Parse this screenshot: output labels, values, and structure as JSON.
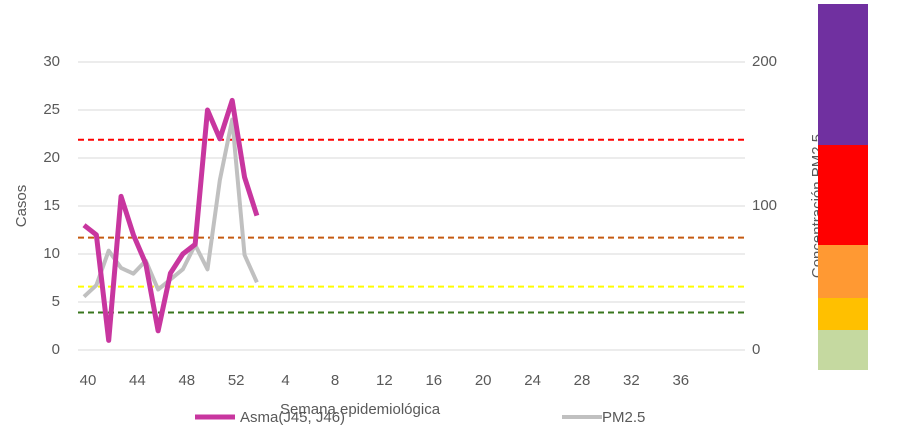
{
  "chart_data": {
    "type": "line",
    "x_label": "Semana epidemiológica",
    "y_label": "Casos",
    "y2_label": "Concentración PM2.5",
    "categories": [
      "40",
      null,
      null,
      null,
      "44",
      null,
      null,
      null,
      "48",
      null,
      null,
      null,
      "52",
      null,
      null,
      null,
      "4",
      null,
      null,
      null,
      "8",
      null,
      null,
      null,
      "12",
      null,
      null,
      null,
      "16",
      null,
      null,
      null,
      "20",
      null,
      null,
      null,
      "24",
      null,
      null,
      null,
      "28",
      null,
      null,
      null,
      "32",
      null,
      null,
      null,
      "36",
      null,
      null,
      null
    ],
    "ylim": [
      0,
      30
    ],
    "yticks": [
      0,
      5,
      10,
      15,
      20,
      25,
      30
    ],
    "y2lim": [
      0,
      200
    ],
    "y2ticks": [
      0,
      100,
      200
    ],
    "grid": true,
    "series": [
      {
        "name": "Asma(J45, J46)",
        "color": "#c8369f",
        "values": [
          13,
          12,
          1,
          16,
          12,
          9,
          2,
          8,
          10,
          11,
          25,
          22,
          26,
          18,
          14,
          null,
          null,
          null,
          null,
          null,
          null,
          null,
          null,
          null,
          null,
          null,
          null,
          null,
          null,
          null,
          null,
          null,
          null,
          null,
          null,
          null,
          null,
          null,
          null,
          null,
          null,
          null,
          null,
          null,
          null,
          null,
          null,
          null,
          null,
          null,
          null,
          null
        ]
      },
      {
        "name": "PM2.5",
        "color": "#c0c0c0",
        "axis": "y2",
        "values": [
          37,
          45,
          69,
          57,
          53,
          62,
          42,
          49,
          56,
          73,
          56,
          118,
          160,
          66,
          47,
          null,
          null,
          null,
          null,
          null,
          null,
          null,
          null,
          null,
          null,
          null,
          null,
          null,
          null,
          null,
          null,
          null,
          null,
          null,
          null,
          null,
          null,
          null,
          null,
          null,
          null,
          null,
          null,
          null,
          null,
          null,
          null,
          null,
          null,
          null,
          null,
          null
        ]
      }
    ],
    "threshold_lines": [
      {
        "value": 146,
        "color": "#ff0000",
        "axis": "y2"
      },
      {
        "value": 78,
        "color": "#c55a11",
        "axis": "y2"
      },
      {
        "value": 44,
        "color": "#ffff00",
        "axis": "y2"
      },
      {
        "value": 26,
        "color": "#38761d",
        "axis": "y2"
      }
    ]
  }
}
